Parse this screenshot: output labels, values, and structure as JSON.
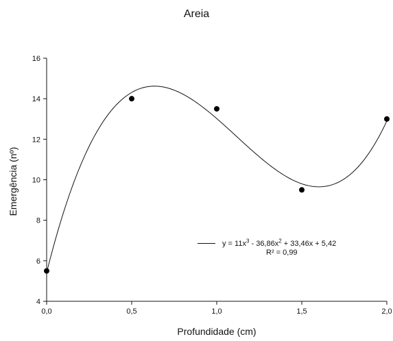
{
  "chart_data": {
    "type": "scatter",
    "title": "Areia",
    "xlabel": "Profundidade (cm)",
    "ylabel": "Emergência (nº)",
    "xlim": [
      0,
      2
    ],
    "ylim": [
      4,
      16
    ],
    "xticks": [
      0,
      0.5,
      1,
      1.5,
      2
    ],
    "xtick_labels": [
      "0,0",
      "0,5",
      "1,0",
      "1,5",
      "2,0"
    ],
    "yticks": [
      4,
      6,
      8,
      10,
      12,
      14,
      16
    ],
    "ytick_labels": [
      "4",
      "6",
      "8",
      "10",
      "12",
      "14",
      "16"
    ],
    "grid": false,
    "points": [
      {
        "x": 0,
        "y": 5.5
      },
      {
        "x": 0.5,
        "y": 14
      },
      {
        "x": 1,
        "y": 13.5
      },
      {
        "x": 1.5,
        "y": 9.5
      },
      {
        "x": 2,
        "y": 13
      }
    ],
    "fit": {
      "coefficients": [
        11,
        -36.86,
        33.46,
        5.42
      ],
      "equation_parts": [
        "y = 11x",
        "3",
        " - 36,86x",
        "2",
        " + 33,46x + 5,42"
      ],
      "r2_label": "R² = 0,99"
    },
    "legend_placement": "lower-right"
  }
}
